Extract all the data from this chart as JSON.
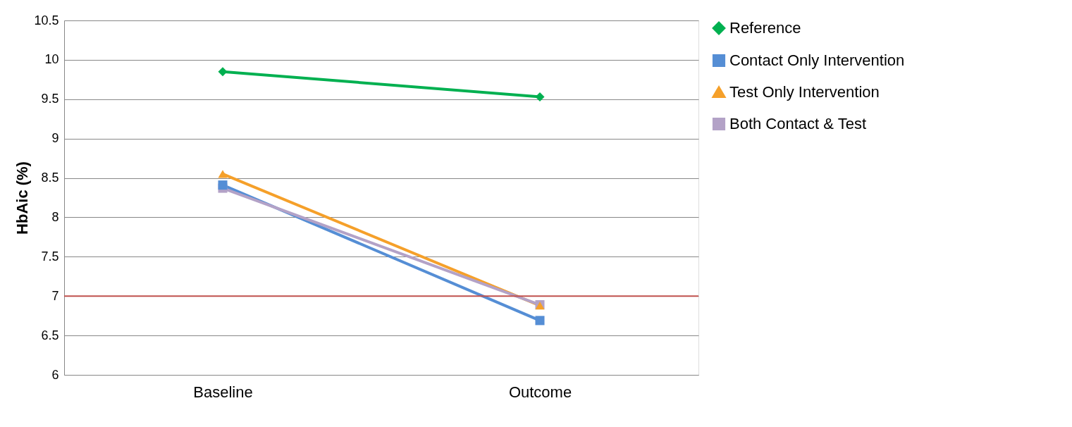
{
  "chart_data": {
    "type": "line",
    "ylabel": "HbAic (%)",
    "categories": [
      "Baseline",
      "Outcome"
    ],
    "series": [
      {
        "name": "Reference",
        "color": "#00b050",
        "marker": "diamond",
        "values": [
          9.85,
          9.53
        ]
      },
      {
        "name": "Contact Only Intervention",
        "color": "#558ed5",
        "marker": "square",
        "values": [
          8.41,
          6.69
        ]
      },
      {
        "name": "Test Only Intervention",
        "color": "#f5a02a",
        "marker": "triangle",
        "values": [
          8.55,
          6.88
        ]
      },
      {
        "name": "Both Contact & Test",
        "color": "#b3a2c7",
        "marker": "square",
        "values": [
          8.37,
          6.89
        ]
      }
    ],
    "ylim": [
      6,
      10.5
    ],
    "yticks": [
      6,
      6.5,
      7,
      7.5,
      8,
      8.5,
      9,
      9.5,
      10,
      10.5
    ],
    "grid": "y",
    "legend": "right",
    "ref_lines": [
      {
        "axis": "y",
        "value": 7,
        "color": "#c0504d"
      }
    ]
  }
}
